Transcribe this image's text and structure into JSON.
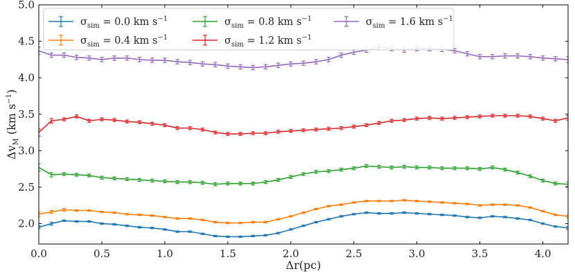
{
  "chart_data": {
    "type": "line",
    "title": "",
    "xlabel": "Δr(pc)",
    "ylabel_main": "Δv",
    "ylabel_sub": "M",
    "ylabel_unit_open": " (km s",
    "ylabel_unit_sup": "−1",
    "ylabel_unit_close": ")",
    "xlim": [
      0.0,
      4.2
    ],
    "ylim": [
      1.72,
      5.0
    ],
    "xticks": [
      0.0,
      0.5,
      1.0,
      1.5,
      2.0,
      2.5,
      3.0,
      3.5,
      4.0
    ],
    "xtick_labels": [
      "0.0",
      "0.5",
      "1.0",
      "1.5",
      "2.0",
      "2.5",
      "3.0",
      "3.5",
      "4.0"
    ],
    "yticks": [
      2.0,
      2.5,
      3.0,
      3.5,
      4.0,
      4.5,
      5.0
    ],
    "ytick_labels": [
      "2.0",
      "2.5",
      "3.0",
      "3.5",
      "4.0",
      "4.5",
      "5.0"
    ],
    "grid": false,
    "legend_position": "top-left",
    "x": [
      0.0,
      0.1,
      0.2,
      0.3,
      0.4,
      0.5,
      0.6,
      0.7,
      0.8,
      0.9,
      1.0,
      1.1,
      1.2,
      1.3,
      1.4,
      1.5,
      1.6,
      1.7,
      1.8,
      1.9,
      2.0,
      2.1,
      2.2,
      2.3,
      2.4,
      2.5,
      2.6,
      2.7,
      2.8,
      2.9,
      3.0,
      3.1,
      3.2,
      3.3,
      3.4,
      3.5,
      3.6,
      3.7,
      3.8,
      3.9,
      4.0,
      4.1,
      4.2
    ],
    "series": [
      {
        "name_symbol": "σ",
        "name_sub": "sim",
        "name_value": " = 0.0 km s",
        "name_sup": "−1",
        "color": "#1f77b4",
        "values": [
          1.95,
          2.0,
          2.04,
          2.03,
          2.03,
          2.0,
          1.99,
          1.97,
          1.95,
          1.94,
          1.92,
          1.89,
          1.89,
          1.86,
          1.83,
          1.82,
          1.82,
          1.83,
          1.84,
          1.87,
          1.92,
          1.97,
          2.02,
          2.06,
          2.1,
          2.13,
          2.15,
          2.14,
          2.14,
          2.15,
          2.14,
          2.13,
          2.12,
          2.11,
          2.09,
          2.08,
          2.1,
          2.09,
          2.07,
          2.05,
          2.0,
          1.96,
          1.94
        ],
        "error": [
          0.02,
          0.02,
          0.01,
          0.01,
          0.01,
          0.01,
          0.01,
          0.01,
          0.01,
          0.01,
          0.01,
          0.01,
          0.01,
          0.01,
          0.01,
          0.01,
          0.01,
          0.01,
          0.01,
          0.01,
          0.01,
          0.01,
          0.01,
          0.01,
          0.01,
          0.01,
          0.01,
          0.01,
          0.01,
          0.01,
          0.01,
          0.01,
          0.01,
          0.01,
          0.01,
          0.01,
          0.01,
          0.01,
          0.01,
          0.01,
          0.01,
          0.01,
          0.02
        ]
      },
      {
        "name_symbol": "σ",
        "name_sub": "sim",
        "name_value": " = 0.4 km s",
        "name_sup": "−1",
        "color": "#ff7f0e",
        "values": [
          2.13,
          2.16,
          2.19,
          2.18,
          2.18,
          2.16,
          2.15,
          2.13,
          2.12,
          2.11,
          2.09,
          2.07,
          2.07,
          2.05,
          2.02,
          2.01,
          2.01,
          2.02,
          2.02,
          2.06,
          2.1,
          2.15,
          2.2,
          2.24,
          2.26,
          2.29,
          2.31,
          2.31,
          2.31,
          2.32,
          2.31,
          2.3,
          2.29,
          2.28,
          2.27,
          2.25,
          2.26,
          2.26,
          2.25,
          2.22,
          2.17,
          2.12,
          2.1
        ],
        "error": [
          0.03,
          0.02,
          0.02,
          0.01,
          0.01,
          0.01,
          0.01,
          0.01,
          0.01,
          0.01,
          0.01,
          0.01,
          0.01,
          0.01,
          0.01,
          0.01,
          0.01,
          0.01,
          0.01,
          0.01,
          0.01,
          0.01,
          0.01,
          0.01,
          0.01,
          0.01,
          0.01,
          0.01,
          0.01,
          0.01,
          0.01,
          0.01,
          0.01,
          0.01,
          0.01,
          0.01,
          0.01,
          0.01,
          0.01,
          0.01,
          0.01,
          0.01,
          0.02
        ]
      },
      {
        "name_symbol": "σ",
        "name_sub": "sim",
        "name_value": " = 0.8 km s",
        "name_sup": "−1",
        "color": "#2ca02c",
        "values": [
          2.77,
          2.67,
          2.68,
          2.67,
          2.66,
          2.63,
          2.62,
          2.61,
          2.6,
          2.59,
          2.58,
          2.57,
          2.57,
          2.56,
          2.54,
          2.55,
          2.55,
          2.55,
          2.57,
          2.6,
          2.64,
          2.68,
          2.71,
          2.72,
          2.74,
          2.76,
          2.79,
          2.78,
          2.77,
          2.78,
          2.77,
          2.77,
          2.76,
          2.76,
          2.76,
          2.75,
          2.77,
          2.74,
          2.7,
          2.65,
          2.59,
          2.55,
          2.54
        ],
        "error": [
          0.05,
          0.03,
          0.02,
          0.02,
          0.02,
          0.02,
          0.02,
          0.02,
          0.02,
          0.02,
          0.02,
          0.02,
          0.02,
          0.02,
          0.02,
          0.02,
          0.02,
          0.02,
          0.02,
          0.02,
          0.02,
          0.02,
          0.02,
          0.02,
          0.02,
          0.02,
          0.02,
          0.02,
          0.02,
          0.02,
          0.02,
          0.02,
          0.02,
          0.02,
          0.02,
          0.02,
          0.02,
          0.02,
          0.02,
          0.02,
          0.02,
          0.02,
          0.03
        ]
      },
      {
        "name_symbol": "σ",
        "name_sub": "sim",
        "name_value": " = 1.2 km s",
        "name_sup": "−1",
        "color": "#d62728",
        "values": [
          3.25,
          3.41,
          3.43,
          3.47,
          3.41,
          3.43,
          3.42,
          3.4,
          3.39,
          3.37,
          3.35,
          3.31,
          3.31,
          3.29,
          3.25,
          3.23,
          3.23,
          3.24,
          3.24,
          3.26,
          3.27,
          3.28,
          3.29,
          3.3,
          3.31,
          3.33,
          3.35,
          3.38,
          3.41,
          3.42,
          3.44,
          3.45,
          3.44,
          3.45,
          3.46,
          3.47,
          3.48,
          3.48,
          3.48,
          3.47,
          3.44,
          3.41,
          3.45
        ],
        "error": [
          0.05,
          0.03,
          0.02,
          0.02,
          0.02,
          0.02,
          0.02,
          0.02,
          0.02,
          0.02,
          0.02,
          0.02,
          0.02,
          0.02,
          0.02,
          0.02,
          0.02,
          0.02,
          0.02,
          0.02,
          0.02,
          0.02,
          0.02,
          0.02,
          0.02,
          0.02,
          0.02,
          0.02,
          0.02,
          0.02,
          0.02,
          0.02,
          0.02,
          0.02,
          0.02,
          0.02,
          0.02,
          0.02,
          0.02,
          0.02,
          0.02,
          0.02,
          0.03
        ]
      },
      {
        "name_symbol": "σ",
        "name_sub": "sim",
        "name_value": " = 1.6 km s",
        "name_sup": "−1",
        "color": "#9467bd",
        "values": [
          4.37,
          4.31,
          4.31,
          4.28,
          4.27,
          4.25,
          4.27,
          4.27,
          4.25,
          4.24,
          4.24,
          4.22,
          4.21,
          4.19,
          4.18,
          4.16,
          4.15,
          4.14,
          4.15,
          4.17,
          4.19,
          4.2,
          4.22,
          4.25,
          4.31,
          4.35,
          4.38,
          4.42,
          4.4,
          4.38,
          4.4,
          4.4,
          4.39,
          4.37,
          4.33,
          4.29,
          4.29,
          4.3,
          4.3,
          4.29,
          4.27,
          4.26,
          4.25
        ],
        "error": [
          0.05,
          0.03,
          0.03,
          0.03,
          0.03,
          0.03,
          0.03,
          0.03,
          0.03,
          0.03,
          0.03,
          0.03,
          0.03,
          0.03,
          0.03,
          0.03,
          0.03,
          0.03,
          0.03,
          0.03,
          0.03,
          0.03,
          0.03,
          0.03,
          0.03,
          0.03,
          0.03,
          0.03,
          0.03,
          0.03,
          0.03,
          0.03,
          0.03,
          0.03,
          0.03,
          0.03,
          0.03,
          0.03,
          0.03,
          0.03,
          0.03,
          0.03,
          0.04
        ]
      }
    ]
  }
}
